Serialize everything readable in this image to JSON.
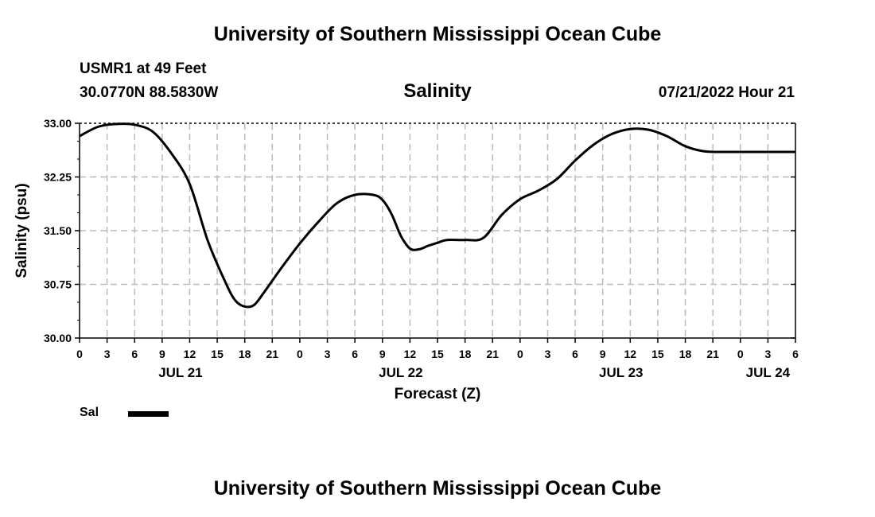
{
  "page_title": "University of Southern Mississippi Ocean Cube",
  "footer_title": "University of Southern Mississippi Ocean Cube",
  "station": "USMR1 at 49 Feet",
  "coordinates": "30.0770N  88.5830W",
  "run_time": "07/21/2022 Hour 21",
  "chart_data": {
    "type": "line",
    "title": "Salinity",
    "xlabel": "Forecast (Z)",
    "ylabel": "Salinity (psu)",
    "ylim": [
      30.0,
      33.0
    ],
    "xlim": [
      0,
      78
    ],
    "yticks": [
      "33.00",
      "32.25",
      "31.50",
      "30.75",
      "30.00"
    ],
    "ytick_values": [
      33.0,
      32.25,
      31.5,
      30.75,
      30.0
    ],
    "xticks": [
      "0",
      "3",
      "6",
      "9",
      "12",
      "15",
      "18",
      "21",
      "0",
      "3",
      "6",
      "9",
      "12",
      "15",
      "18",
      "21",
      "0",
      "3",
      "6",
      "9",
      "12",
      "15",
      "18",
      "21",
      "0",
      "3",
      "6"
    ],
    "date_labels": [
      {
        "label": "JUL 21",
        "hour": 11
      },
      {
        "label": "JUL 22",
        "hour": 35
      },
      {
        "label": "JUL 23",
        "hour": 59
      },
      {
        "label": "JUL 24",
        "hour": 75
      }
    ],
    "grid": true,
    "series": [
      {
        "name": "Sal",
        "x": [
          0,
          2,
          4,
          6,
          8,
          10,
          12,
          14,
          16,
          17,
          18,
          19,
          20,
          22,
          24,
          26,
          28,
          30,
          32,
          33,
          34,
          35,
          36,
          37,
          38,
          39,
          40,
          42,
          44,
          46,
          48,
          50,
          52,
          54,
          56,
          58,
          60,
          62,
          64,
          66,
          68,
          70,
          72,
          74,
          76,
          78
        ],
        "values": [
          32.82,
          32.95,
          32.99,
          32.98,
          32.88,
          32.58,
          32.15,
          31.35,
          30.75,
          30.52,
          30.44,
          30.46,
          30.62,
          30.98,
          31.32,
          31.62,
          31.88,
          32.0,
          32.0,
          31.93,
          31.73,
          31.43,
          31.25,
          31.24,
          31.29,
          31.33,
          31.37,
          31.37,
          31.4,
          31.72,
          31.94,
          32.06,
          32.22,
          32.48,
          32.7,
          32.85,
          32.92,
          32.91,
          32.82,
          32.68,
          32.61,
          32.6,
          32.6,
          32.6,
          32.6,
          32.6
        ]
      }
    ]
  },
  "legend": {
    "label": "Sal",
    "color": "#000000"
  }
}
